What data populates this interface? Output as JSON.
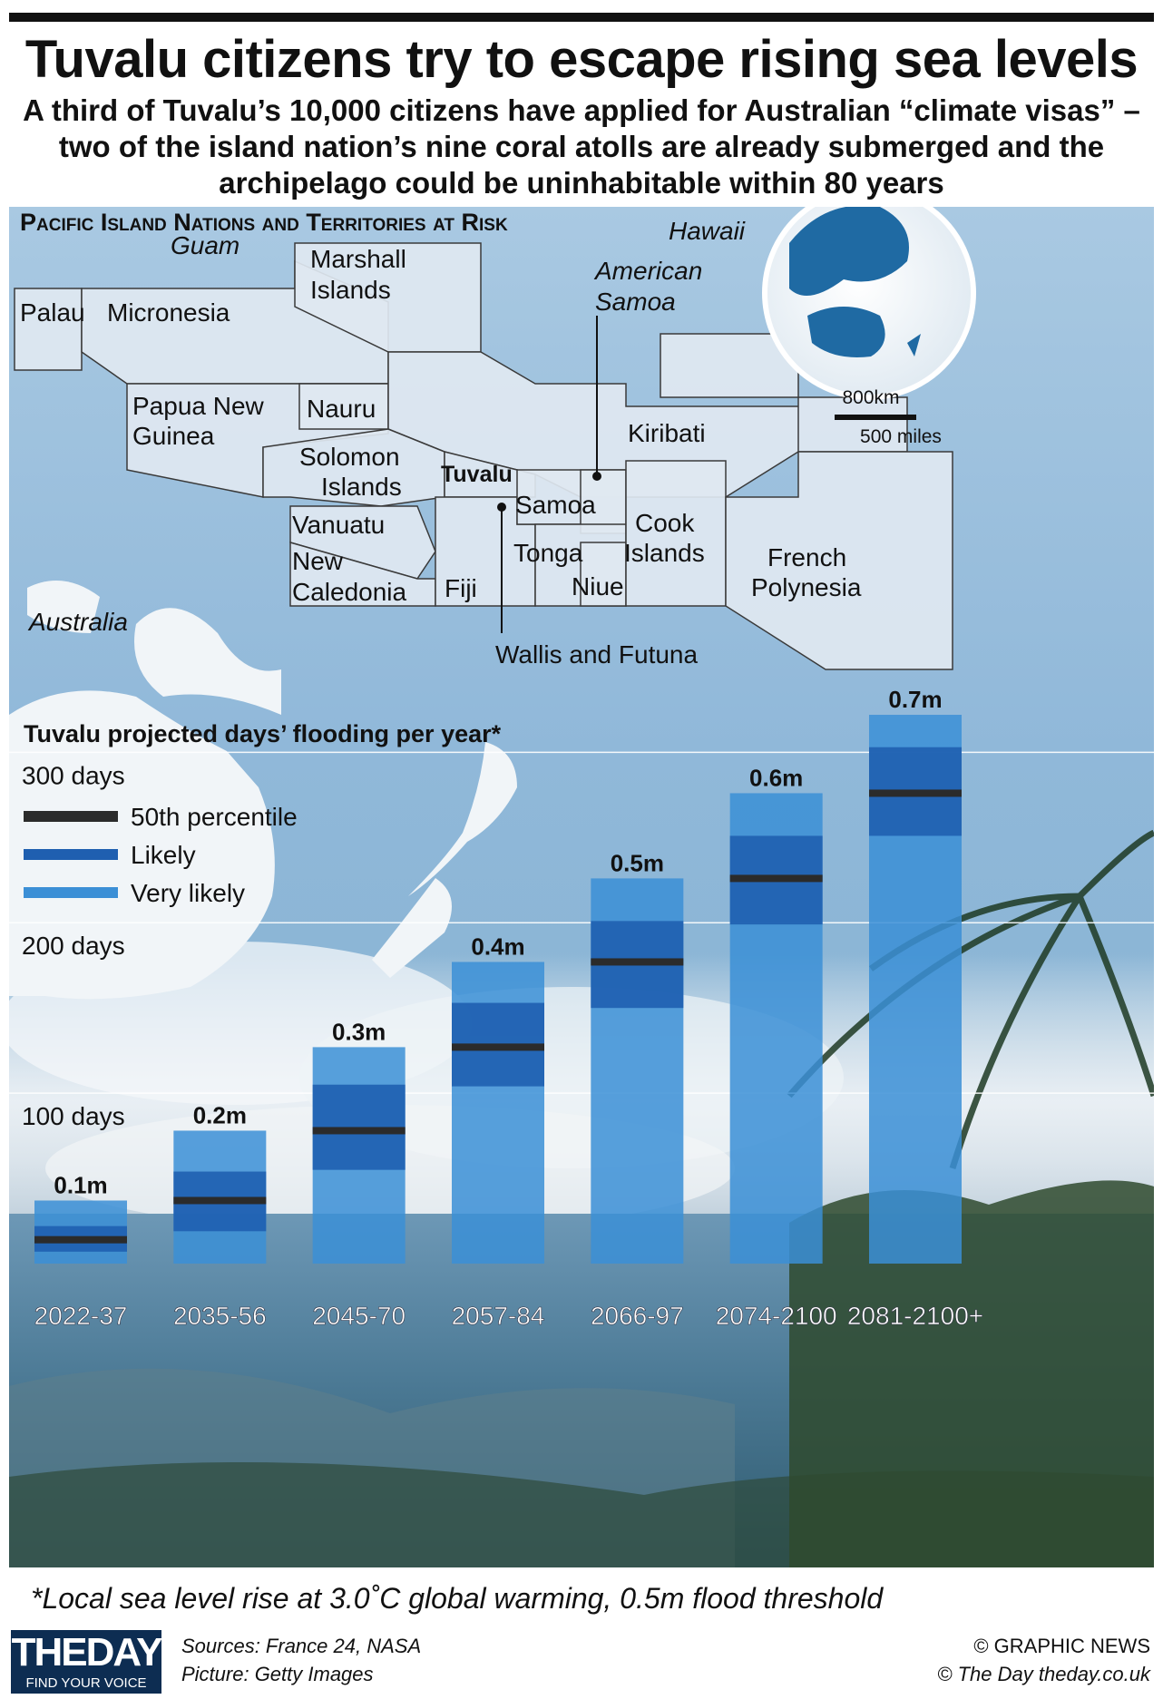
{
  "title": "Tuvalu citizens try to escape rising sea levels",
  "subtitle": "A third of Tuvalu’s 10,000 citizens have applied for Australian “climate visas” – two of the island nation’s nine coral atolls are already submerged and the archipelago could be uninhabitable within 80 years",
  "map": {
    "heading": "Pacific Island Nations and Territories  at Risk",
    "labels": {
      "guam": "Guam",
      "hawaii": "Hawaii",
      "marshall1": "Marshall",
      "marshall2": "Islands",
      "american1": "American",
      "american2": "Samoa",
      "palau": "Palau",
      "micronesia": "Micronesia",
      "png1": "Papua New",
      "png2": "Guinea",
      "nauru": "Nauru",
      "kiribati": "Kiribati",
      "solomon1": "Solomon",
      "solomon2": "Islands",
      "tuvalu": "Tuvalu",
      "samoa": "Samoa",
      "vanuatu": "Vanuatu",
      "newcal1": "New",
      "newcal2": "Caledonia",
      "fiji": "Fiji",
      "tonga": "Tonga",
      "niue": "Niue",
      "cook1": "Cook",
      "cook2": "Islands",
      "frenchpoly1": "French",
      "frenchpoly2": "Polynesia",
      "australia": "Australia",
      "wallis": "Wallis and Futuna"
    },
    "scale_km": "800km",
    "scale_miles": "500 miles"
  },
  "chart_data": {
    "type": "bar",
    "title": "Tuvalu projected days’ flooding per year*",
    "categories": [
      "2022-37",
      "2035-56",
      "2045-70",
      "2057-84",
      "2066-97",
      "2074-2100",
      "2081-2100+"
    ],
    "bar_labels": [
      "0.1m",
      "0.2m",
      "0.3m",
      "0.4m",
      "0.5m",
      "0.6m",
      "0.7m"
    ],
    "median_days": [
      14,
      37,
      78,
      127,
      177,
      226,
      276
    ],
    "likely_range": [
      [
        7,
        22
      ],
      [
        19,
        54
      ],
      [
        55,
        105
      ],
      [
        104,
        153
      ],
      [
        150,
        201
      ],
      [
        199,
        251
      ],
      [
        251,
        303
      ]
    ],
    "very_likely_range": [
      [
        0,
        37
      ],
      [
        0,
        78
      ],
      [
        0,
        127
      ],
      [
        0,
        177
      ],
      [
        0,
        226
      ],
      [
        0,
        276
      ],
      [
        0,
        322
      ]
    ],
    "y_ticks": [
      100,
      200,
      300
    ],
    "y_tick_labels": [
      "100 days",
      "200 days",
      "300 days"
    ],
    "ylim": [
      0,
      330
    ],
    "legend": [
      {
        "label": "50th percentile",
        "color": "#2b2b2b"
      },
      {
        "label": "Likely",
        "color": "#1f5fb0"
      },
      {
        "label": "Very likely",
        "color": "#3b8fd6"
      }
    ],
    "legend_position": "top-left"
  },
  "footnote": "*Local sea level rise at 3.0˚C global warming, 0.5m flood threshold",
  "logo": {
    "text": "THEDAY",
    "tagline": "FIND YOUR VOICE"
  },
  "sources": "Sources: France 24, NASA",
  "picture": "Picture: Getty Images",
  "credit_graphic": "© GRAPHIC NEWS",
  "credit_day": "© The Day   theday.co.uk"
}
